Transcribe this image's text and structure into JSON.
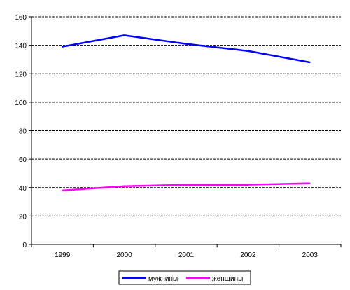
{
  "chart_data": {
    "type": "line",
    "title": "",
    "xlabel": "",
    "ylabel": "",
    "categories": [
      "1999",
      "2000",
      "2001",
      "2002",
      "2003"
    ],
    "ylim": [
      0,
      160
    ],
    "yticks": [
      0,
      20,
      40,
      60,
      80,
      100,
      120,
      140,
      160
    ],
    "grid": true,
    "legend_position": "bottom",
    "series": [
      {
        "name": "мужчины",
        "color": "#0000ff",
        "values": [
          139,
          147,
          141,
          136,
          128
        ]
      },
      {
        "name": "женщины",
        "color": "#ff00ff",
        "values": [
          38,
          41,
          42,
          42,
          43
        ]
      }
    ]
  }
}
